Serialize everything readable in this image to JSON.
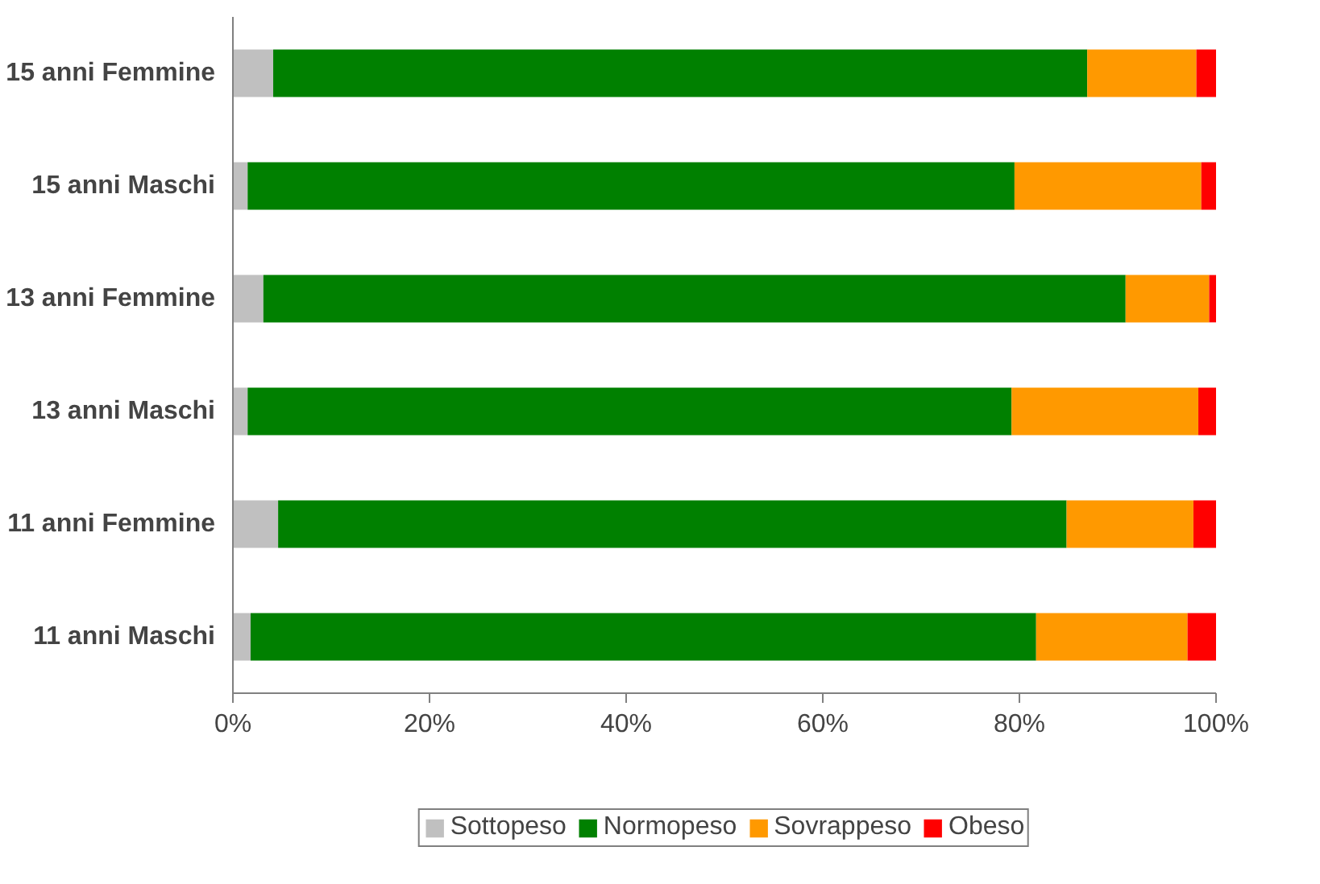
{
  "chart_data": {
    "type": "bar",
    "orientation": "horizontal",
    "stacked": true,
    "categories": [
      "15 anni Femmine",
      "15 anni Maschi",
      "13 anni Femmine",
      "13 anni Maschi",
      "11 anni Femmine",
      "11 anni Maschi"
    ],
    "series": [
      {
        "name": "Sottopeso",
        "color": "#c0c0c0",
        "values": [
          4.1,
          1.5,
          3.1,
          1.5,
          4.6,
          1.8
        ]
      },
      {
        "name": "Normopeso",
        "color": "#008000",
        "values": [
          82.8,
          78.0,
          87.7,
          77.7,
          80.2,
          79.9
        ]
      },
      {
        "name": "Sovrappeso",
        "color": "#ff9900",
        "values": [
          11.1,
          19.0,
          8.5,
          19.0,
          12.9,
          15.4
        ]
      },
      {
        "name": "Obeso",
        "color": "#ff0000",
        "values": [
          2.0,
          1.5,
          0.7,
          1.8,
          2.3,
          2.9
        ]
      }
    ],
    "xlim": [
      0,
      100
    ],
    "xticks": [
      {
        "value": 0,
        "label": "0%"
      },
      {
        "value": 20,
        "label": "20%"
      },
      {
        "value": 40,
        "label": "40%"
      },
      {
        "value": 60,
        "label": "60%"
      },
      {
        "value": 80,
        "label": "80%"
      },
      {
        "value": 100,
        "label": "100%"
      }
    ],
    "grid": false,
    "legend": "bottom"
  }
}
